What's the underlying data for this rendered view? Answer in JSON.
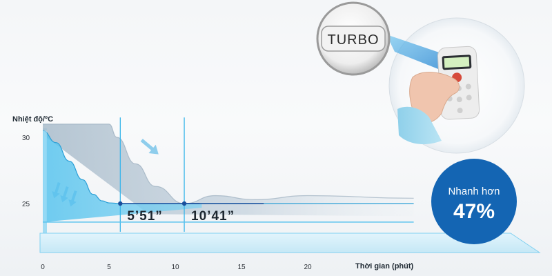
{
  "chart_data": {
    "type": "area",
    "ylabel": "Nhiệt độ/ºC",
    "xlabel": "Thời gian (phút)",
    "x_ticks": [
      0,
      5,
      10,
      15,
      20
    ],
    "y_ticks": [
      30,
      25
    ],
    "xlim": [
      0,
      28
    ],
    "ylim": [
      20.5,
      31.5
    ],
    "series": [
      {
        "x": [
          0,
          1,
          2,
          3,
          3.8,
          4.5,
          5,
          5.85,
          8,
          12,
          28
        ],
        "y": [
          30.5,
          29.6,
          28.2,
          26.8,
          25.7,
          25.2,
          25.05,
          25,
          25,
          25,
          25
        ]
      },
      {
        "x": [
          0,
          5,
          5.6,
          7,
          8.5,
          10.68,
          13,
          16,
          20,
          28
        ],
        "y": [
          31,
          31,
          30,
          28,
          26.3,
          25,
          25.6,
          25.3,
          25.6,
          25.4
        ]
      }
    ],
    "markers": [
      {
        "x": 5.85,
        "y": 25,
        "label": "5’51”"
      },
      {
        "x": 10.68,
        "y": 25,
        "label": "10’41”"
      }
    ]
  },
  "badge": {
    "line1": "Nhanh hơn",
    "line2": "47%"
  },
  "remote": {
    "button_label": "TURBO"
  },
  "colors": {
    "badge": "#1465b3",
    "light_blue": "#5cc7ef",
    "grey_band": "#c8d4de",
    "marker": "#1a4f9c"
  }
}
